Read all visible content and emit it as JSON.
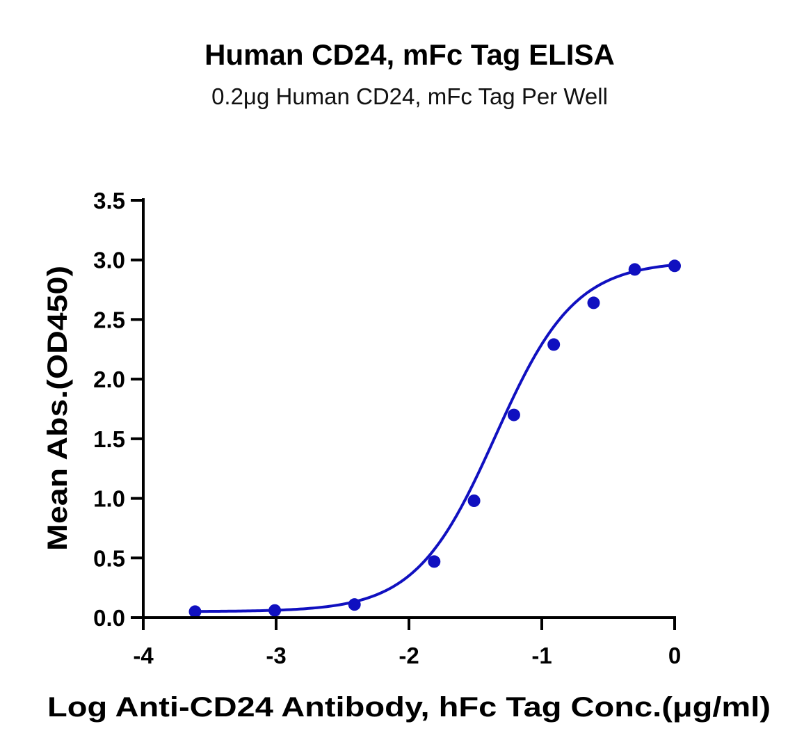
{
  "chart_data": {
    "type": "scatter",
    "title": "Human CD24, mFc Tag ELISA",
    "subtitle": "0.2μg Human CD24, mFc Tag Per Well",
    "xlabel": "Log Anti-CD24 Antibody, hFc Tag Conc.(μg/ml)",
    "ylabel": "Mean Abs.(OD450)",
    "xlim": [
      -4,
      0
    ],
    "ylim": [
      0,
      3.5
    ],
    "x_ticks": [
      -4,
      -3,
      -2,
      -1,
      0
    ],
    "x_tick_labels": [
      "-4",
      "-3",
      "-2",
      "-1",
      "0"
    ],
    "y_ticks": [
      0,
      0.5,
      1,
      1.5,
      2,
      2.5,
      3,
      3.5
    ],
    "y_tick_labels": [
      "0.0",
      "0.5",
      "1.0",
      "1.5",
      "2.0",
      "2.5",
      "3.0",
      "3.5"
    ],
    "grid": false,
    "legend": "none",
    "color": "#1010c0",
    "series": [
      {
        "x": [
          -3.61,
          -3.01,
          -2.41,
          -1.81,
          -1.51,
          -1.21,
          -0.91,
          -0.61,
          -0.3,
          0
        ],
        "y": [
          0.05,
          0.06,
          0.11,
          0.47,
          0.98,
          1.7,
          2.29,
          2.64,
          2.92,
          2.95
        ]
      }
    ],
    "fit_curve": {
      "model": "4PL",
      "bottom": 0.05,
      "top": 2.99,
      "logEC50": -1.35,
      "hill": 1.45
    }
  }
}
